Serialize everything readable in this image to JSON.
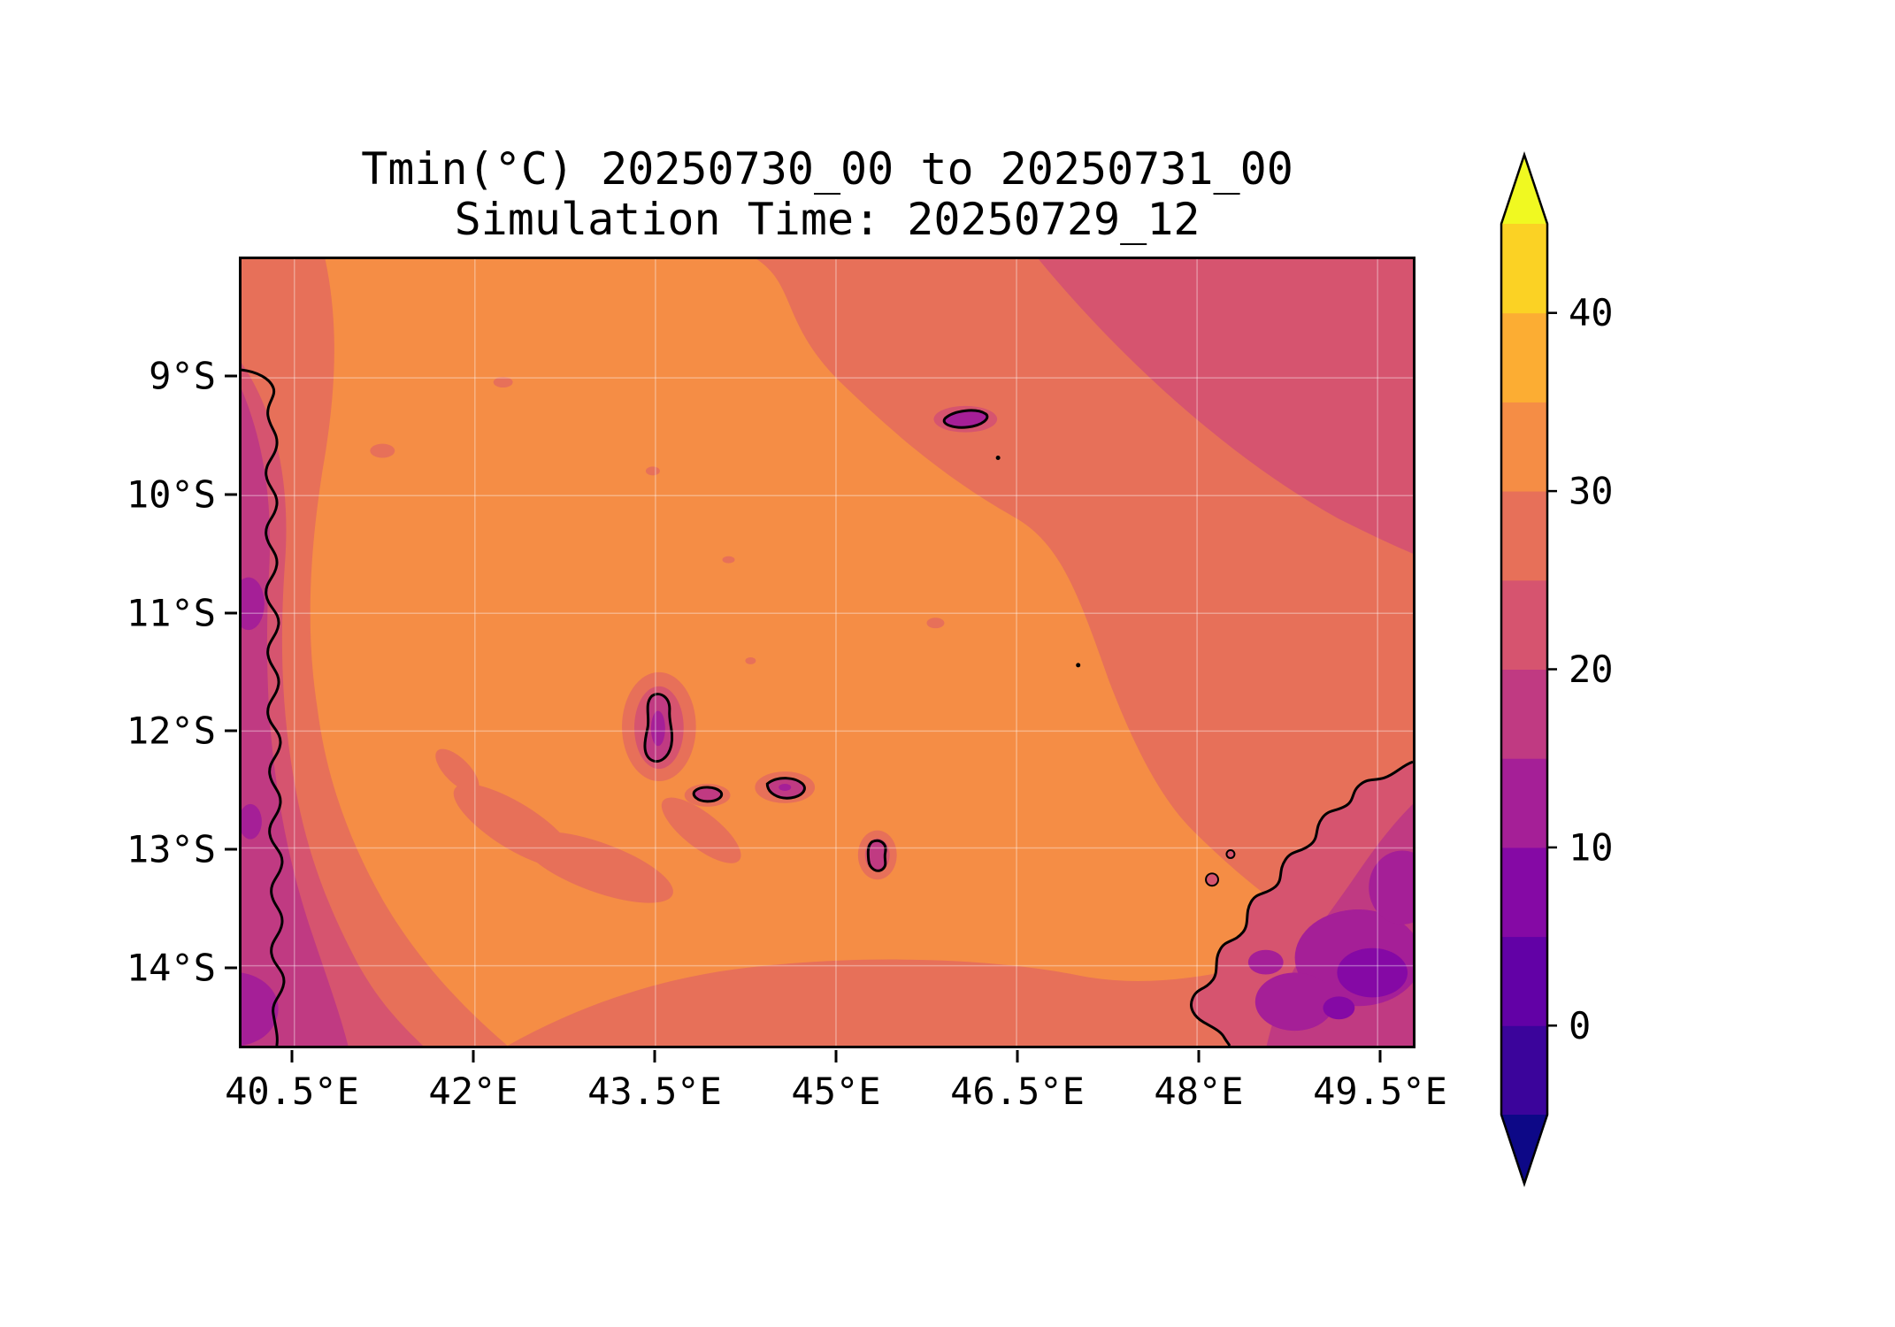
{
  "figure": {
    "background": "#ffffff"
  },
  "chart_data": {
    "type": "heatmap",
    "title": "Tmin(°C) 20250730_00 to 20250731_00",
    "subtitle": "Simulation Time: 20250729_12",
    "variable": "Tmin",
    "units": "°C",
    "valid_start": "20250730_00",
    "valid_end": "20250731_00",
    "simulation_time": "20250729_12",
    "x_axis": {
      "ticks": [
        "40.5°E",
        "42°E",
        "43.5°E",
        "45°E",
        "46.5°E",
        "48°E",
        "49.5°E"
      ]
    },
    "y_axis": {
      "ticks": [
        "9°S",
        "10°S",
        "11°S",
        "12°S",
        "13°S",
        "14°S"
      ]
    },
    "grid": true,
    "colorbar": {
      "colormap": "plasma",
      "position": "right",
      "extend": "both",
      "levels": [
        -5,
        0,
        5,
        10,
        15,
        20,
        25,
        30,
        35,
        40,
        45
      ],
      "tick_values": [
        0,
        10,
        20,
        30,
        40
      ],
      "tick_labels": [
        "0",
        "10",
        "20",
        "30",
        "40"
      ],
      "under_color": "#0d0887",
      "over_color": "#f0f921",
      "band_colors_low_to_high": [
        "#3b049b",
        "#6201a6",
        "#8509a5",
        "#a51f97",
        "#c03a82",
        "#d6546f",
        "#e77059",
        "#f58d45",
        "#fcad33",
        "#fbd224"
      ]
    },
    "map_colors": {
      "band_30_35": "#f58d45",
      "band_25_30": "#e77059",
      "band_20_25": "#d6546f",
      "band_15_20": "#c03a82",
      "band_10_15": "#a51f97",
      "band_5_10": "#8509a5",
      "coastline": "#000000",
      "grid": "#ffffff"
    },
    "regions": [
      {
        "area": "central and western ocean (most of the map)",
        "color": "#f58d45",
        "tmin_band_c": "30–35"
      },
      {
        "area": "upper-right quadrant of the map",
        "color": "#e77059",
        "tmin_band_c": "25–30"
      },
      {
        "area": "far upper-right corner",
        "color": "#d6546f",
        "tmin_band_c": "20–25"
      },
      {
        "area": "strip along the western (left) edge, landward of outlined coast",
        "color": "#c03a82",
        "tmin_band_c": "15–20"
      },
      {
        "area": "small patches on the western edge and bottom-left corner",
        "color": "#a51f97",
        "tmin_band_c": "10–15"
      },
      {
        "area": "strip along the southern (bottom) edge",
        "color": "#e77059",
        "tmin_band_c": "25–30"
      },
      {
        "area": "large landmass in the lower-right corner with outlined coast",
        "color": "#c03a82",
        "tmin_band_c": "15–20 with 10–15 and 5–10 pockets inland"
      },
      {
        "area": "small outlined islands near map center",
        "color": "#c03a82",
        "tmin_band_c": "15–20 with 10–15 centers"
      },
      {
        "area": "tiny outlined island near top center-right",
        "color": "#a51f97",
        "tmin_band_c": "10–15"
      }
    ]
  }
}
